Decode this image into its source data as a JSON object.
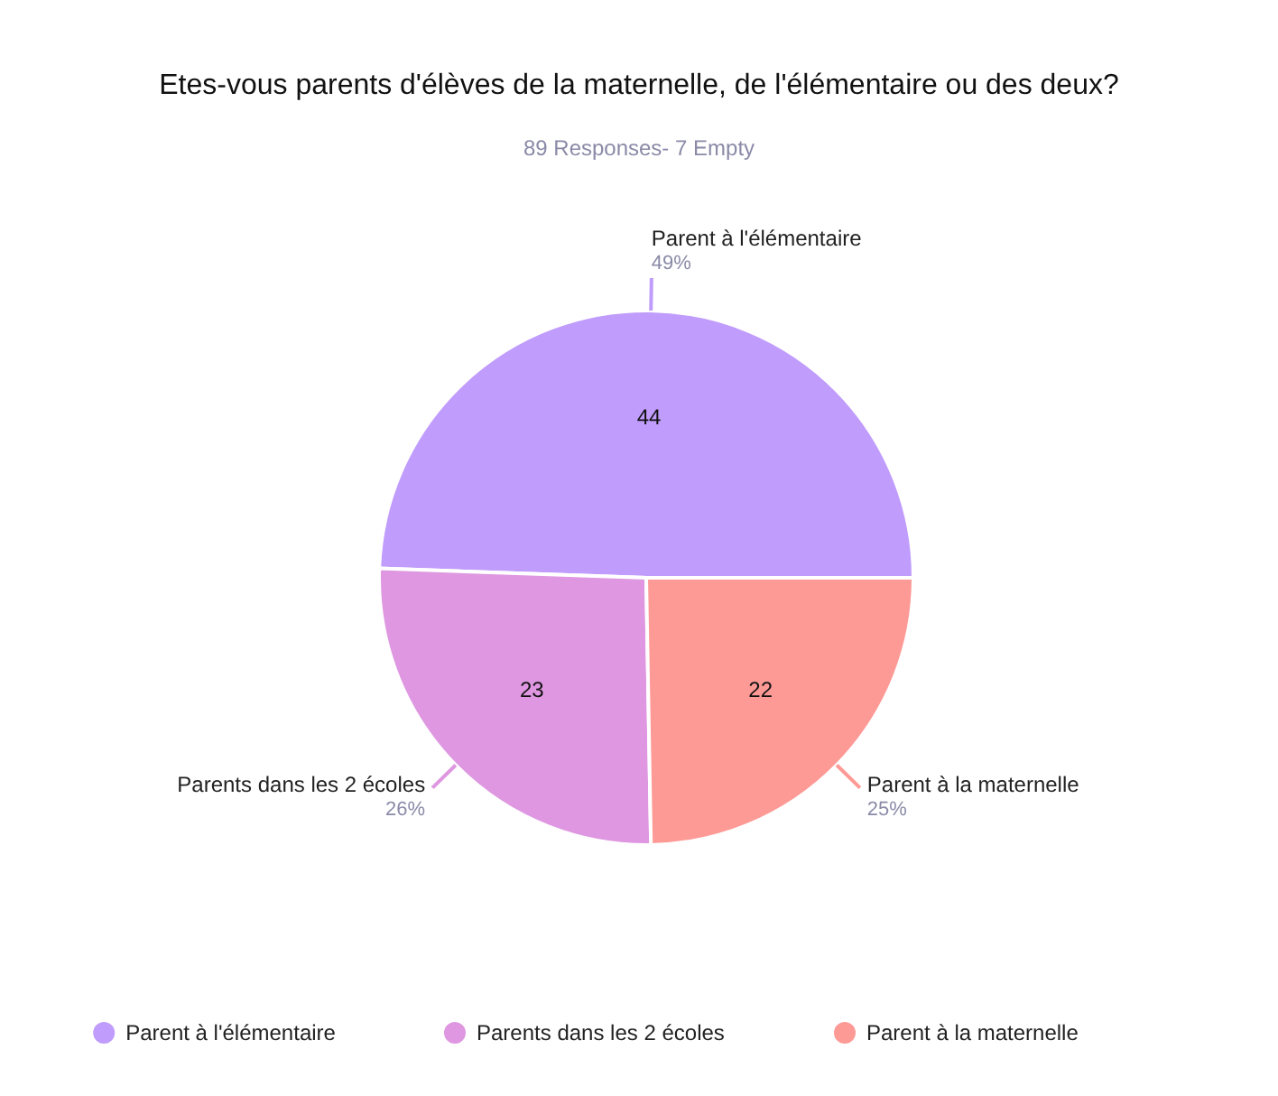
{
  "chart_data": {
    "type": "pie",
    "title": "Etes-vous parents d'élèves de la maternelle, de l'élémentaire ou des deux?",
    "subtitle": "89 Responses- 7 Empty",
    "categories": [
      "Parent à l'élémentaire",
      "Parents dans les 2 écoles",
      "Parent à la maternelle"
    ],
    "values": [
      44,
      23,
      22
    ],
    "colors": [
      "#c09cfc",
      "#de97e0",
      "#fe9a96"
    ],
    "data_labels": true,
    "annotations": [
      "49%",
      "26%",
      "25%"
    ],
    "legend": "bottom"
  }
}
